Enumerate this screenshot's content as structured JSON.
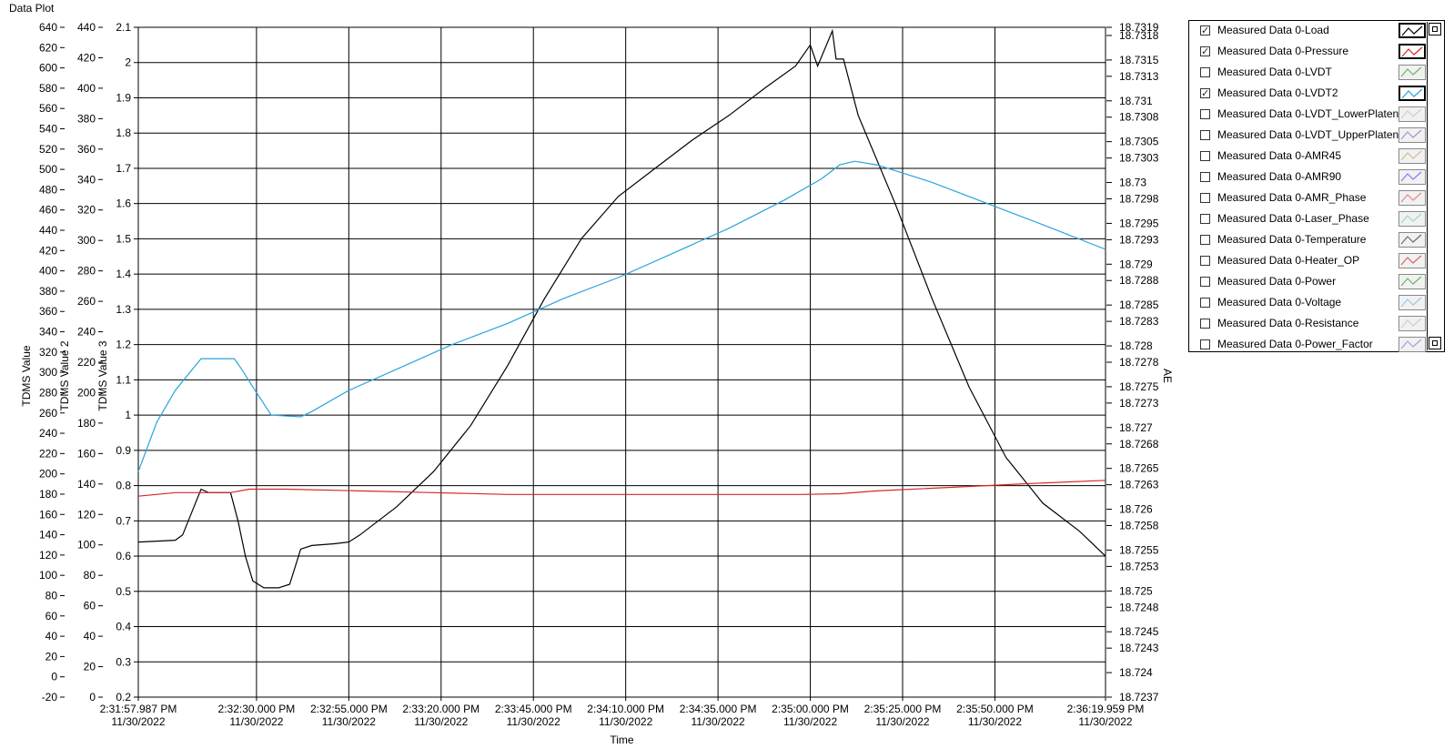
{
  "plot_title": "Data Plot",
  "chart_data": {
    "type": "line",
    "title": "Data Plot",
    "xlabel": "Time",
    "x_ticks": [
      {
        "time": "2:31:57.987 PM",
        "date": "11/30/2022"
      },
      {
        "time": "2:32:30.000 PM",
        "date": "11/30/2022"
      },
      {
        "time": "2:32:55.000 PM",
        "date": "11/30/2022"
      },
      {
        "time": "2:33:20.000 PM",
        "date": "11/30/2022"
      },
      {
        "time": "2:33:45.000 PM",
        "date": "11/30/2022"
      },
      {
        "time": "2:34:10.000 PM",
        "date": "11/30/2022"
      },
      {
        "time": "2:34:35.000 PM",
        "date": "11/30/2022"
      },
      {
        "time": "2:35:00.000 PM",
        "date": "11/30/2022"
      },
      {
        "time": "2:35:25.000 PM",
        "date": "11/30/2022"
      },
      {
        "time": "2:35:50.000 PM",
        "date": "11/30/2022"
      },
      {
        "time": "2:36:19.959 PM",
        "date": "11/30/2022"
      }
    ],
    "x_tick_seconds": [
      0,
      32.013,
      57.013,
      82.013,
      107.013,
      132.013,
      157.013,
      182.013,
      207.013,
      232.013,
      261.972
    ],
    "xlim_seconds": [
      0,
      261.972
    ],
    "y_axes": [
      {
        "label": "TDMS Value",
        "min": -20,
        "max": 640,
        "ticks": [
          "640",
          "620",
          "600",
          "580",
          "560",
          "540",
          "520",
          "500",
          "480",
          "460",
          "440",
          "420",
          "400",
          "380",
          "360",
          "340",
          "320",
          "300",
          "280",
          "260",
          "240",
          "220",
          "200",
          "180",
          "160",
          "140",
          "120",
          "100",
          "80",
          "60",
          "40",
          "20",
          "0",
          "-20"
        ]
      },
      {
        "label": "TDMS Value 2",
        "min": 0,
        "max": 440,
        "ticks": [
          "440",
          "420",
          "400",
          "380",
          "360",
          "340",
          "320",
          "300",
          "280",
          "260",
          "240",
          "220",
          "200",
          "180",
          "160",
          "140",
          "120",
          "100",
          "80",
          "60",
          "40",
          "20",
          "0"
        ]
      },
      {
        "label": "TDMS Value 3",
        "min": 0.2,
        "max": 2.1,
        "ticks": [
          "2.1",
          "2",
          "1.9",
          "1.8",
          "1.7",
          "1.6",
          "1.5",
          "1.4",
          "1.3",
          "1.2",
          "1.1",
          "1",
          "0.9",
          "0.8",
          "0.7",
          "0.6",
          "0.5",
          "0.4",
          "0.3",
          "0.2"
        ]
      },
      {
        "label": "AE",
        "min": 18.7237,
        "max": 18.7319,
        "side": "right",
        "ticks": [
          "18.7319",
          "18.7318",
          "18.7315",
          "18.7313",
          "18.731",
          "18.7308",
          "18.7305",
          "18.7303",
          "18.73",
          "18.7298",
          "18.7295",
          "18.7293",
          "18.729",
          "18.7288",
          "18.7285",
          "18.7283",
          "18.728",
          "18.7278",
          "18.7275",
          "18.7273",
          "18.727",
          "18.7268",
          "18.7265",
          "18.7263",
          "18.726",
          "18.7258",
          "18.7255",
          "18.7253",
          "18.725",
          "18.7248",
          "18.7245",
          "18.7243",
          "18.724",
          "18.7237"
        ]
      }
    ],
    "grid": true,
    "legend_position": "right",
    "series": [
      {
        "name": "Measured Data 0-Load",
        "color": "#000000",
        "axis": 2,
        "points": [
          [
            0,
            0.64
          ],
          [
            10,
            0.645
          ],
          [
            12,
            0.66
          ],
          [
            17,
            0.79
          ],
          [
            19,
            0.78
          ],
          [
            25,
            0.78
          ],
          [
            27,
            0.7
          ],
          [
            29,
            0.6
          ],
          [
            31,
            0.53
          ],
          [
            34,
            0.51
          ],
          [
            38,
            0.51
          ],
          [
            41,
            0.52
          ],
          [
            44,
            0.62
          ],
          [
            47,
            0.63
          ],
          [
            53,
            0.635
          ],
          [
            57,
            0.64
          ],
          [
            60,
            0.66
          ],
          [
            70,
            0.74
          ],
          [
            80,
            0.84
          ],
          [
            90,
            0.97
          ],
          [
            100,
            1.14
          ],
          [
            110,
            1.33
          ],
          [
            120,
            1.5
          ],
          [
            130,
            1.62
          ],
          [
            140,
            1.7
          ],
          [
            150,
            1.78
          ],
          [
            160,
            1.85
          ],
          [
            170,
            1.93
          ],
          [
            178,
            1.99
          ],
          [
            182,
            2.05
          ],
          [
            184,
            1.99
          ],
          [
            188,
            2.09
          ],
          [
            189,
            2.01
          ],
          [
            191,
            2.01
          ],
          [
            195,
            1.85
          ],
          [
            205,
            1.6
          ],
          [
            215,
            1.33
          ],
          [
            225,
            1.08
          ],
          [
            235,
            0.88
          ],
          [
            245,
            0.75
          ],
          [
            255,
            0.67
          ],
          [
            261.972,
            0.6
          ]
        ]
      },
      {
        "name": "Measured Data 0-Pressure",
        "color": "#d62728",
        "axis": 2,
        "points": [
          [
            0,
            0.77
          ],
          [
            10,
            0.78
          ],
          [
            20,
            0.78
          ],
          [
            25,
            0.78
          ],
          [
            30,
            0.79
          ],
          [
            40,
            0.79
          ],
          [
            60,
            0.785
          ],
          [
            80,
            0.78
          ],
          [
            100,
            0.775
          ],
          [
            120,
            0.775
          ],
          [
            150,
            0.775
          ],
          [
            180,
            0.775
          ],
          [
            190,
            0.777
          ],
          [
            200,
            0.785
          ],
          [
            220,
            0.795
          ],
          [
            240,
            0.805
          ],
          [
            261.972,
            0.815
          ]
        ]
      },
      {
        "name": "Measured Data 0-LVDT2",
        "color": "#29a3dc",
        "axis": 2,
        "points": [
          [
            0,
            0.84
          ],
          [
            5,
            0.98
          ],
          [
            10,
            1.07
          ],
          [
            17,
            1.16
          ],
          [
            22,
            1.16
          ],
          [
            26,
            1.16
          ],
          [
            28,
            1.13
          ],
          [
            31,
            1.08
          ],
          [
            36,
            1.0
          ],
          [
            44,
            0.995
          ],
          [
            47,
            1.01
          ],
          [
            57,
            1.07
          ],
          [
            70,
            1.13
          ],
          [
            85,
            1.2
          ],
          [
            100,
            1.26
          ],
          [
            115,
            1.33
          ],
          [
            130,
            1.39
          ],
          [
            145,
            1.46
          ],
          [
            160,
            1.53
          ],
          [
            175,
            1.61
          ],
          [
            185,
            1.67
          ],
          [
            190,
            1.71
          ],
          [
            194,
            1.72
          ],
          [
            200,
            1.71
          ],
          [
            215,
            1.66
          ],
          [
            230,
            1.6
          ],
          [
            245,
            1.54
          ],
          [
            261.972,
            1.47
          ]
        ]
      }
    ]
  },
  "legend": {
    "items": [
      {
        "label": "Measured Data 0-Load",
        "checked": true,
        "color": "#000000"
      },
      {
        "label": "Measured Data 0-Pressure",
        "checked": true,
        "color": "#d62728"
      },
      {
        "label": "Measured Data 0-LVDT",
        "checked": false,
        "color": "#2ca02c"
      },
      {
        "label": "Measured Data 0-LVDT2",
        "checked": true,
        "color": "#29a3dc"
      },
      {
        "label": "Measured Data 0-LVDT_LowerPlaten",
        "checked": false,
        "color": "#bfbfbf"
      },
      {
        "label": "Measured Data 0-LVDT_UpperPlaten",
        "checked": false,
        "color": "#9467bd"
      },
      {
        "label": "Measured Data 0-AMR45",
        "checked": false,
        "color": "#c9a66b"
      },
      {
        "label": "Measured Data 0-AMR90",
        "checked": false,
        "color": "#4c4cff"
      },
      {
        "label": "Measured Data 0-AMR_Phase",
        "checked": false,
        "color": "#e06060"
      },
      {
        "label": "Measured Data 0-Laser_Phase",
        "checked": false,
        "color": "#79d2a3"
      },
      {
        "label": "Measured Data 0-Temperature",
        "checked": false,
        "color": "#333333"
      },
      {
        "label": "Measured Data 0-Heater_OP",
        "checked": false,
        "color": "#d62728"
      },
      {
        "label": "Measured Data 0-Power",
        "checked": false,
        "color": "#2ca02c"
      },
      {
        "label": "Measured Data 0-Voltage",
        "checked": false,
        "color": "#6fb8e8"
      },
      {
        "label": "Measured Data 0-Resistance",
        "checked": false,
        "color": "#bfbfbf"
      },
      {
        "label": "Measured Data 0-Power_Factor",
        "checked": false,
        "color": "#8a7ad8"
      }
    ]
  }
}
